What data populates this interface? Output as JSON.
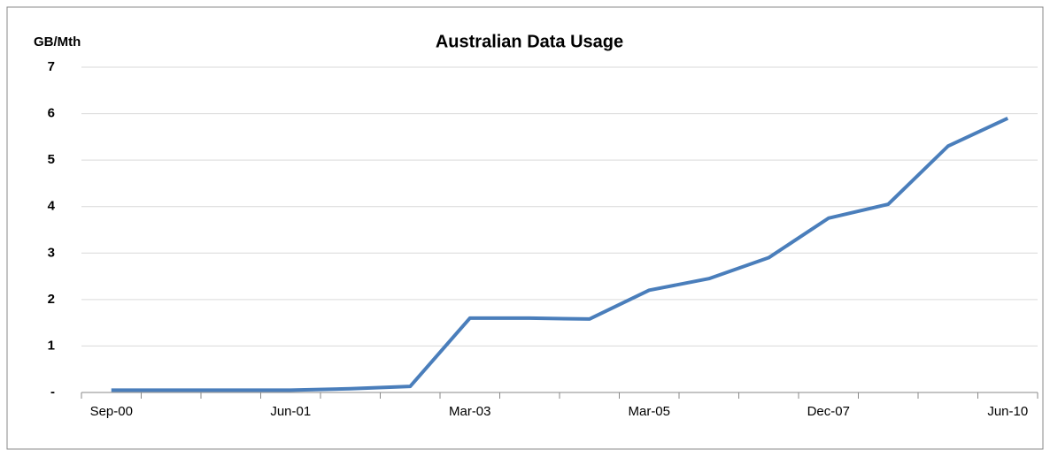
{
  "chart_data": {
    "type": "line",
    "title": "Australian Data Usage",
    "y_label": "GB/Mth",
    "categories": [
      "Sep-00",
      null,
      null,
      "Jun-01",
      null,
      null,
      "Mar-03",
      null,
      null,
      "Mar-05",
      null,
      null,
      "Dec-07",
      null,
      null,
      "Jun-10"
    ],
    "series": [
      {
        "name": "Australian Data Usage",
        "color": "#4a7ebb",
        "values": [
          0.05,
          0.05,
          0.05,
          0.05,
          0.08,
          0.13,
          1.6,
          1.6,
          1.58,
          2.2,
          2.45,
          2.9,
          3.75,
          4.05,
          5.3,
          5.9
        ]
      }
    ],
    "ylim": [
      0,
      7
    ],
    "yticks": [
      {
        "value": 0,
        "label": "-"
      },
      1,
      2,
      3,
      4,
      5,
      6,
      7
    ],
    "grid": true
  }
}
